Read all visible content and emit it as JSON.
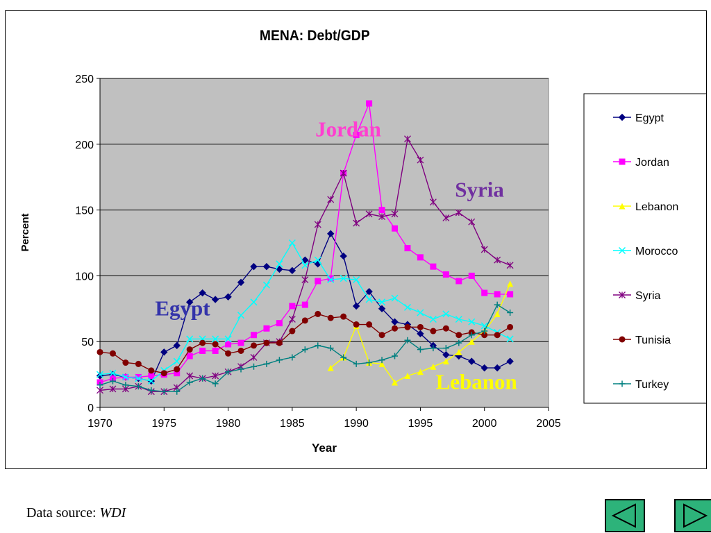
{
  "chart_data": {
    "type": "line",
    "title": "MENA: Debt/GDP",
    "xlabel": "Year",
    "ylabel": "Percent",
    "xlim": [
      1970,
      2005
    ],
    "ylim": [
      0,
      250
    ],
    "xticks": [
      1970,
      1975,
      1980,
      1985,
      1990,
      1995,
      2000,
      2005
    ],
    "yticks": [
      0,
      50,
      100,
      150,
      200,
      250
    ],
    "grid": "horizontal",
    "legend_position": "right",
    "series": [
      {
        "name": "Egypt",
        "color": "#000080",
        "marker": "diamond",
        "points": [
          [
            1970,
            24
          ],
          [
            1971,
            25
          ],
          [
            1972,
            23
          ],
          [
            1973,
            22
          ],
          [
            1974,
            20
          ],
          [
            1975,
            42
          ],
          [
            1976,
            47
          ],
          [
            1977,
            80
          ],
          [
            1978,
            87
          ],
          [
            1979,
            82
          ],
          [
            1980,
            84
          ],
          [
            1981,
            95
          ],
          [
            1982,
            107
          ],
          [
            1983,
            107
          ],
          [
            1984,
            105
          ],
          [
            1985,
            104
          ],
          [
            1986,
            112
          ],
          [
            1987,
            109
          ],
          [
            1988,
            132
          ],
          [
            1989,
            115
          ],
          [
            1990,
            77
          ],
          [
            1991,
            88
          ],
          [
            1992,
            75
          ],
          [
            1993,
            65
          ],
          [
            1994,
            63
          ],
          [
            1995,
            56
          ],
          [
            1996,
            47
          ],
          [
            1997,
            40
          ],
          [
            1998,
            39
          ],
          [
            1999,
            35
          ],
          [
            2000,
            30
          ],
          [
            2001,
            30
          ],
          [
            2002,
            35
          ]
        ]
      },
      {
        "name": "Jordan",
        "color": "#ff00ff",
        "marker": "square",
        "points": [
          [
            1970,
            19
          ],
          [
            1971,
            22
          ],
          [
            1972,
            23
          ],
          [
            1973,
            23
          ],
          [
            1974,
            24
          ],
          [
            1975,
            25
          ],
          [
            1976,
            26
          ],
          [
            1977,
            39
          ],
          [
            1978,
            43
          ],
          [
            1979,
            43
          ],
          [
            1980,
            48
          ],
          [
            1981,
            49
          ],
          [
            1982,
            55
          ],
          [
            1983,
            60
          ],
          [
            1984,
            64
          ],
          [
            1985,
            77
          ],
          [
            1986,
            78
          ],
          [
            1987,
            96
          ],
          [
            1988,
            98
          ],
          [
            1989,
            178
          ],
          [
            1990,
            207
          ],
          [
            1991,
            231
          ],
          [
            1992,
            150
          ],
          [
            1993,
            136
          ],
          [
            1994,
            121
          ],
          [
            1995,
            114
          ],
          [
            1996,
            107
          ],
          [
            1997,
            101
          ],
          [
            1998,
            96
          ],
          [
            1999,
            100
          ],
          [
            2000,
            87
          ],
          [
            2001,
            86
          ],
          [
            2002,
            86
          ]
        ]
      },
      {
        "name": "Lebanon",
        "color": "#ffff00",
        "marker": "triangle",
        "points": [
          [
            1988,
            30
          ],
          [
            1989,
            38
          ],
          [
            1990,
            62
          ],
          [
            1991,
            34
          ],
          [
            1992,
            33
          ],
          [
            1993,
            19
          ],
          [
            1994,
            24
          ],
          [
            1995,
            27
          ],
          [
            1996,
            31
          ],
          [
            1997,
            35
          ],
          [
            1998,
            42
          ],
          [
            1999,
            50
          ],
          [
            2000,
            58
          ],
          [
            2001,
            71
          ],
          [
            2002,
            94
          ]
        ]
      },
      {
        "name": "Morocco",
        "color": "#00ffff",
        "marker": "x",
        "points": [
          [
            1970,
            25
          ],
          [
            1971,
            26
          ],
          [
            1972,
            23
          ],
          [
            1973,
            22
          ],
          [
            1974,
            20
          ],
          [
            1975,
            28
          ],
          [
            1976,
            35
          ],
          [
            1977,
            52
          ],
          [
            1978,
            52
          ],
          [
            1979,
            52
          ],
          [
            1980,
            52
          ],
          [
            1981,
            70
          ],
          [
            1982,
            80
          ],
          [
            1983,
            93
          ],
          [
            1984,
            109
          ],
          [
            1985,
            125
          ],
          [
            1986,
            108
          ],
          [
            1987,
            112
          ],
          [
            1988,
            97
          ],
          [
            1989,
            98
          ],
          [
            1990,
            97
          ],
          [
            1991,
            82
          ],
          [
            1992,
            80
          ],
          [
            1993,
            83
          ],
          [
            1994,
            76
          ],
          [
            1995,
            72
          ],
          [
            1996,
            67
          ],
          [
            1997,
            71
          ],
          [
            1998,
            67
          ],
          [
            1999,
            65
          ],
          [
            2000,
            62
          ],
          [
            2001,
            57
          ],
          [
            2002,
            52
          ]
        ]
      },
      {
        "name": "Syria",
        "color": "#800080",
        "marker": "star",
        "points": [
          [
            1970,
            13
          ],
          [
            1971,
            14
          ],
          [
            1972,
            14
          ],
          [
            1973,
            16
          ],
          [
            1974,
            12
          ],
          [
            1975,
            12
          ],
          [
            1976,
            15
          ],
          [
            1977,
            24
          ],
          [
            1978,
            22
          ],
          [
            1979,
            24
          ],
          [
            1980,
            27
          ],
          [
            1981,
            31
          ],
          [
            1982,
            38
          ],
          [
            1983,
            49
          ],
          [
            1984,
            50
          ],
          [
            1985,
            67
          ],
          [
            1986,
            97
          ],
          [
            1987,
            139
          ],
          [
            1988,
            158
          ],
          [
            1989,
            178
          ],
          [
            1990,
            140
          ],
          [
            1991,
            147
          ],
          [
            1992,
            145
          ],
          [
            1993,
            147
          ],
          [
            1994,
            204
          ],
          [
            1995,
            188
          ],
          [
            1996,
            156
          ],
          [
            1997,
            144
          ],
          [
            1998,
            148
          ],
          [
            1999,
            141
          ],
          [
            2000,
            120
          ],
          [
            2001,
            112
          ],
          [
            2002,
            108
          ]
        ]
      },
      {
        "name": "Tunisia",
        "color": "#800000",
        "marker": "circle",
        "points": [
          [
            1970,
            42
          ],
          [
            1971,
            41
          ],
          [
            1972,
            34
          ],
          [
            1973,
            33
          ],
          [
            1974,
            28
          ],
          [
            1975,
            26
          ],
          [
            1976,
            29
          ],
          [
            1977,
            44
          ],
          [
            1978,
            49
          ],
          [
            1979,
            48
          ],
          [
            1980,
            41
          ],
          [
            1981,
            43
          ],
          [
            1982,
            47
          ],
          [
            1983,
            49
          ],
          [
            1984,
            49
          ],
          [
            1985,
            58
          ],
          [
            1986,
            66
          ],
          [
            1987,
            71
          ],
          [
            1988,
            68
          ],
          [
            1989,
            69
          ],
          [
            1990,
            63
          ],
          [
            1991,
            63
          ],
          [
            1992,
            55
          ],
          [
            1993,
            60
          ],
          [
            1994,
            61
          ],
          [
            1995,
            61
          ],
          [
            1996,
            58
          ],
          [
            1997,
            60
          ],
          [
            1998,
            55
          ],
          [
            1999,
            57
          ],
          [
            2000,
            55
          ],
          [
            2001,
            55
          ],
          [
            2002,
            61
          ]
        ]
      },
      {
        "name": "Turkey",
        "color": "#008080",
        "marker": "plus",
        "points": [
          [
            1970,
            17
          ],
          [
            1971,
            20
          ],
          [
            1972,
            17
          ],
          [
            1973,
            16
          ],
          [
            1974,
            13
          ],
          [
            1975,
            12
          ],
          [
            1976,
            12
          ],
          [
            1977,
            19
          ],
          [
            1978,
            22
          ],
          [
            1979,
            18
          ],
          [
            1980,
            27
          ],
          [
            1981,
            29
          ],
          [
            1982,
            31
          ],
          [
            1983,
            33
          ],
          [
            1984,
            36
          ],
          [
            1985,
            38
          ],
          [
            1986,
            44
          ],
          [
            1987,
            47
          ],
          [
            1988,
            45
          ],
          [
            1989,
            38
          ],
          [
            1990,
            33
          ],
          [
            1991,
            34
          ],
          [
            1992,
            36
          ],
          [
            1993,
            39
          ],
          [
            1994,
            51
          ],
          [
            1995,
            44
          ],
          [
            1996,
            45
          ],
          [
            1997,
            45
          ],
          [
            1998,
            49
          ],
          [
            1999,
            55
          ],
          [
            2000,
            58
          ],
          [
            2001,
            78
          ],
          [
            2002,
            72
          ]
        ]
      }
    ],
    "annotations": [
      {
        "text": "Jordan",
        "color": "#ff3fd0",
        "year": 1986.8,
        "value": 206
      },
      {
        "text": "Syria",
        "color": "#7030a0",
        "year": 1997.7,
        "value": 160
      },
      {
        "text": "Egypt",
        "color": "#3333aa",
        "year": 1974.3,
        "value": 70
      },
      {
        "text": "Lebanon",
        "color": "#ffff00",
        "year": 1996.2,
        "value": 14
      }
    ],
    "plot_background": "#c0c0c0"
  },
  "footer": {
    "source_label": "Data source: ",
    "source_name": "WDI"
  },
  "nav": {
    "button_color": "#2db37a"
  }
}
